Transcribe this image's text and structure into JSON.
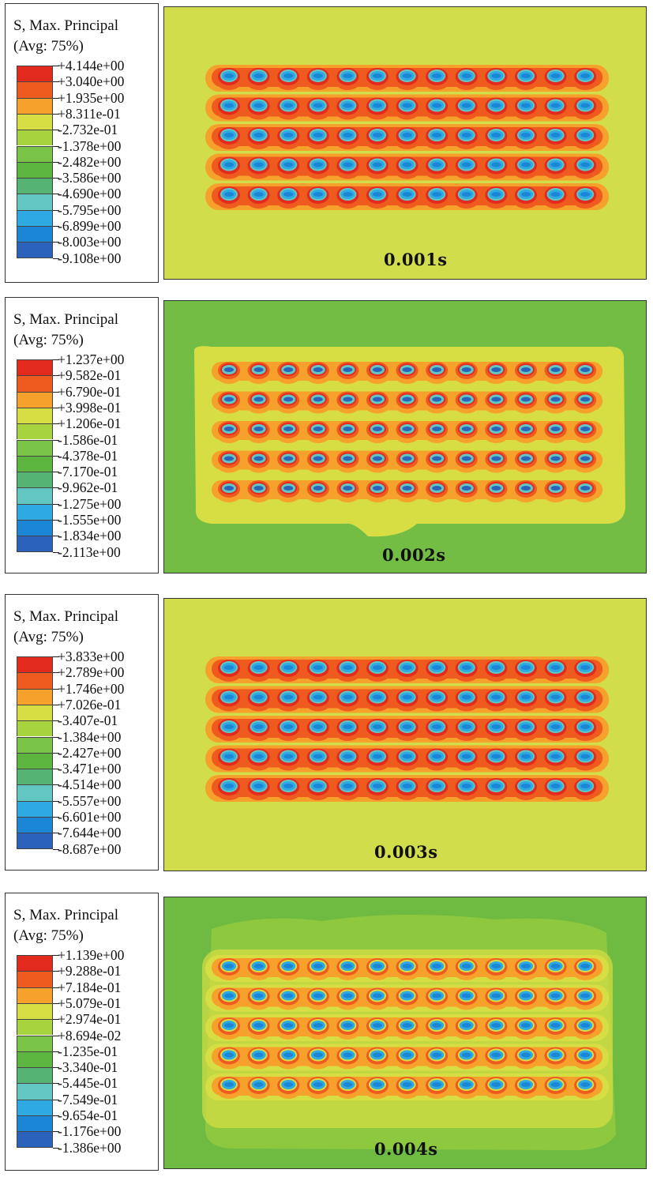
{
  "panels": [
    {
      "time": "0.001s",
      "legend_title": "S, Max. Principal",
      "legend_avg": "(Avg: 75%)",
      "field_color": "#d2dd4c",
      "pattern": "hot",
      "labels": [
        "+4.144e+00",
        "+3.040e+00",
        "+1.935e+00",
        "+8.311e-01",
        "-2.732e-01",
        "-1.378e+00",
        "-2.482e+00",
        "-3.586e+00",
        "-4.690e+00",
        "-5.795e+00",
        "-6.899e+00",
        "-8.003e+00",
        "-9.108e+00"
      ]
    },
    {
      "time": "0.002s",
      "legend_title": "S, Max. Principal",
      "legend_avg": "(Avg: 75%)",
      "field_color": "#73bd45",
      "pattern": "mid",
      "labels": [
        "+1.237e+00",
        "+9.582e-01",
        "+6.790e-01",
        "+3.998e-01",
        "+1.206e-01",
        "-1.586e-01",
        "-4.378e-01",
        "-7.170e-01",
        "-9.962e-01",
        "-1.275e+00",
        "-1.555e+00",
        "-1.834e+00",
        "-2.113e+00"
      ]
    },
    {
      "time": "0.003s",
      "legend_title": "S, Max. Principal",
      "legend_avg": "(Avg: 75%)",
      "field_color": "#d2dd4c",
      "pattern": "hot",
      "labels": [
        "+3.833e+00",
        "+2.789e+00",
        "+1.746e+00",
        "+7.026e-01",
        "-3.407e-01",
        "-1.384e+00",
        "-2.427e+00",
        "-3.471e+00",
        "-4.514e+00",
        "-5.557e+00",
        "-6.601e+00",
        "-7.644e+00",
        "-8.687e+00"
      ]
    },
    {
      "time": "0.004s",
      "legend_title": "S, Max. Principal",
      "legend_avg": "(Avg: 75%)",
      "field_color": "#6fbb42",
      "pattern": "cool",
      "labels": [
        "+1.139e+00",
        "+9.288e-01",
        "+7.184e-01",
        "+5.079e-01",
        "+2.974e-01",
        "+8.694e-02",
        "-1.235e-01",
        "-3.340e-01",
        "-5.445e-01",
        "-7.549e-01",
        "-9.654e-01",
        "-1.176e+00",
        "-1.386e+00"
      ]
    }
  ],
  "colormap": [
    "#e32a1e",
    "#ef5a1f",
    "#f5a12c",
    "#d7de44",
    "#a7d33e",
    "#79c346",
    "#5cb53e",
    "#55b473",
    "#62c7c2",
    "#2fa9e1",
    "#1c86d6",
    "#2a62bc",
    "#2b3f9e"
  ],
  "grid": {
    "rows": 5,
    "cols": 13
  }
}
